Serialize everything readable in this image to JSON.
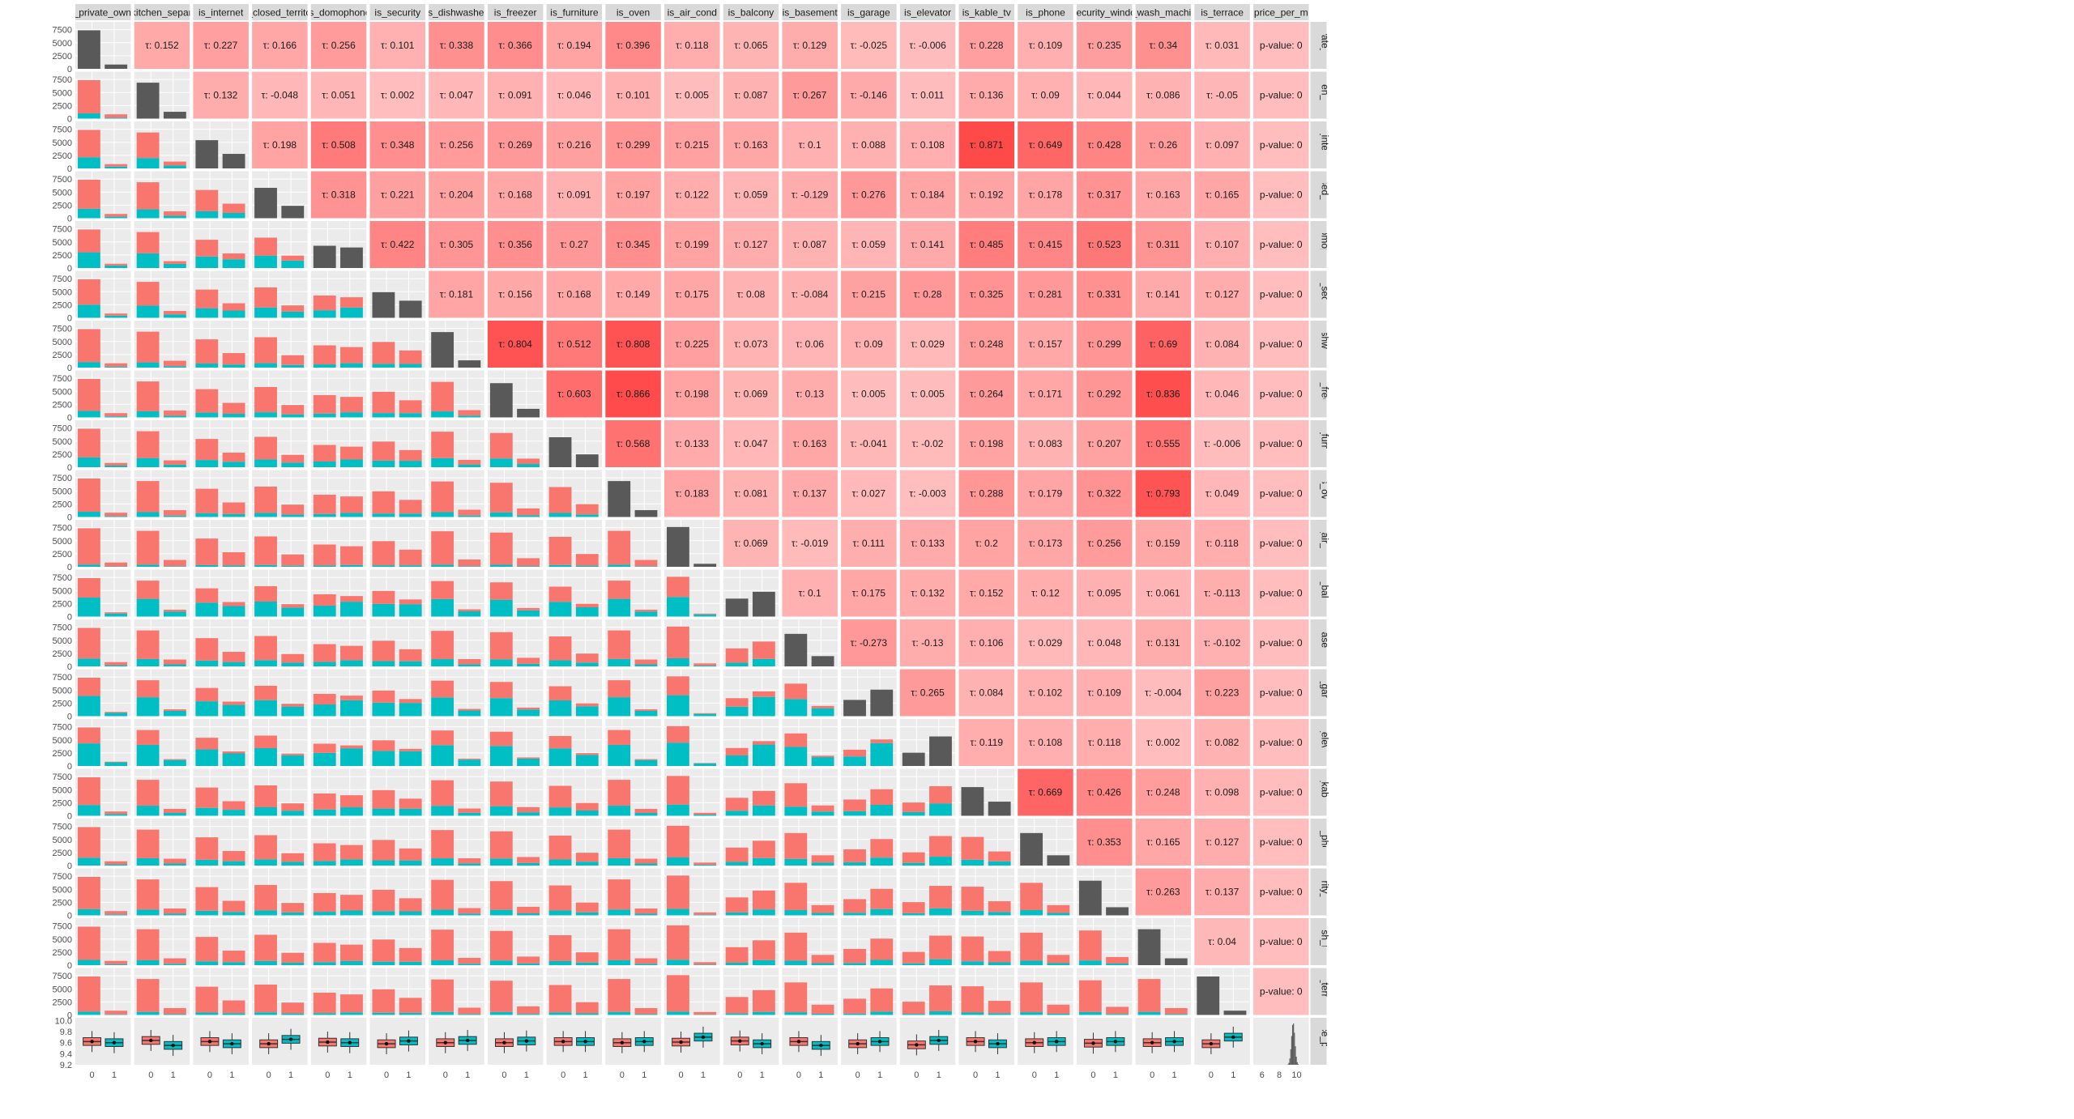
{
  "chart_data": {
    "type": "pairs-matrix",
    "variables": [
      "is_private_owner",
      "is_kitchen_separate",
      "is_internet",
      "is_closed_territory",
      "is_domophone",
      "is_security",
      "is_dishwasher",
      "is_freezer",
      "is_furniture",
      "is_oven",
      "is_air_cond",
      "is_balcony",
      "is_basement",
      "is_garage",
      "is_elevator",
      "is_kable_tv",
      "is_phone",
      "is_security_windows",
      "is_wash_machine",
      "is_terrace",
      "price_per_m"
    ],
    "column_labels": [
      "is_private_owner",
      "is_kitchen_separate",
      "is_internet",
      "is_closed_territory",
      "is_domophone",
      "is_security",
      "is_dishwasher",
      "is_freezer",
      "is_furniture",
      "is_oven",
      "is_air_cond",
      "is_balcony",
      "is_basement",
      "is_garage",
      "is_elevator",
      "is_kable_tv",
      "is_phone",
      "s_security_windows",
      "is_wash_machine",
      "is_terrace",
      "price_per_m"
    ],
    "row_labels": [
      "rivate_ow",
      "chen_sep",
      "is_internet",
      "losed_terri",
      "domopho",
      "is_securit",
      "dishwash",
      "is_freeze",
      "s_furnitur",
      "is_oven",
      "s_air_con",
      "is_balcon",
      "_basemer",
      "is_garage",
      "s_elevato",
      "s_kable_t",
      "is_phone",
      "curity_win",
      "vash_mac",
      "is_terrace",
      "rice_per_"
    ],
    "tau_upper": [
      [
        0.152,
        0.227,
        0.166,
        0.256,
        0.101,
        0.338,
        0.366,
        0.194,
        0.396,
        0.118,
        0.065,
        0.129,
        -0.025,
        -0.006,
        0.228,
        0.109,
        0.235,
        0.34,
        0.031
      ],
      [
        0.132,
        -0.048,
        0.051,
        0.002,
        0.047,
        0.091,
        0.046,
        0.101,
        0.005,
        0.087,
        0.267,
        -0.146,
        0.011,
        0.136,
        0.09,
        0.044,
        0.086,
        -0.05
      ],
      [
        0.198,
        0.508,
        0.348,
        0.256,
        0.269,
        0.216,
        0.299,
        0.215,
        0.163,
        0.1,
        0.088,
        0.108,
        0.871,
        0.649,
        0.428,
        0.26,
        0.097
      ],
      [
        0.318,
        0.221,
        0.204,
        0.168,
        0.091,
        0.197,
        0.122,
        0.059,
        -0.129,
        0.276,
        0.184,
        0.192,
        0.178,
        0.317,
        0.163,
        0.165
      ],
      [
        0.422,
        0.305,
        0.356,
        0.27,
        0.345,
        0.199,
        0.127,
        0.087,
        0.059,
        0.141,
        0.485,
        0.415,
        0.523,
        0.311,
        0.107
      ],
      [
        0.181,
        0.156,
        0.168,
        0.149,
        0.175,
        0.08,
        -0.084,
        0.215,
        0.28,
        0.325,
        0.281,
        0.331,
        0.141,
        0.127
      ],
      [
        0.804,
        0.512,
        0.808,
        0.225,
        0.073,
        0.06,
        0.09,
        0.029,
        0.248,
        0.157,
        0.299,
        0.69,
        0.084
      ],
      [
        0.603,
        0.866,
        0.198,
        0.069,
        0.13,
        0.005,
        0.005,
        0.264,
        0.171,
        0.292,
        0.836,
        0.046
      ],
      [
        0.568,
        0.133,
        0.047,
        0.163,
        -0.041,
        -0.02,
        0.198,
        0.083,
        0.207,
        0.555,
        -0.006
      ],
      [
        0.183,
        0.081,
        0.137,
        0.027,
        -0.003,
        0.288,
        0.179,
        0.322,
        0.793,
        0.049
      ],
      [
        0.069,
        -0.019,
        0.111,
        0.133,
        0.2,
        0.173,
        0.256,
        0.159,
        0.118
      ],
      [
        0.1,
        0.175,
        0.132,
        0.152,
        0.12,
        0.095,
        0.061,
        -0.113
      ],
      [
        -0.273,
        -0.13,
        0.106,
        0.029,
        0.048,
        0.131,
        -0.102
      ],
      [
        0.265,
        0.084,
        0.102,
        0.109,
        -0.004,
        0.223
      ],
      [
        0.119,
        0.108,
        0.118,
        0.002,
        0.082
      ],
      [
        0.669,
        0.426,
        0.248,
        0.098
      ],
      [
        0.353,
        0.165,
        0.127
      ],
      [
        0.263,
        0.137
      ],
      [
        0.04
      ],
      []
    ],
    "tau_prefix": "τ: ",
    "pvalue_text": "p-value: 0",
    "diag_zero_fraction": [
      0.9,
      0.84,
      0.66,
      0.71,
      0.52,
      0.6,
      0.83,
      0.8,
      0.7,
      0.84,
      0.93,
      0.42,
      0.76,
      0.38,
      0.31,
      0.67,
      0.76,
      0.81,
      0.84,
      0.9
    ],
    "ones_fraction": [
      0.1,
      0.16,
      0.34,
      0.29,
      0.48,
      0.4,
      0.17,
      0.2,
      0.3,
      0.16,
      0.07,
      0.58,
      0.24,
      0.62,
      0.69,
      0.33,
      0.24,
      0.19,
      0.16,
      0.1
    ],
    "price_box_medians": [
      [
        9.62,
        9.6
      ],
      [
        9.64,
        9.55
      ],
      [
        9.62,
        9.58
      ],
      [
        9.58,
        9.66
      ],
      [
        9.61,
        9.6
      ],
      [
        9.58,
        9.63
      ],
      [
        9.6,
        9.64
      ],
      [
        9.6,
        9.63
      ],
      [
        9.62,
        9.62
      ],
      [
        9.6,
        9.62
      ],
      [
        9.61,
        9.7
      ],
      [
        9.63,
        9.58
      ],
      [
        9.62,
        9.55
      ],
      [
        9.58,
        9.62
      ],
      [
        9.56,
        9.64
      ],
      [
        9.62,
        9.58
      ],
      [
        9.6,
        9.62
      ],
      [
        9.59,
        9.62
      ],
      [
        9.6,
        9.62
      ],
      [
        9.58,
        9.7
      ]
    ],
    "price_density_peak": 9.6,
    "y_axis_count_ticks": [
      "0",
      "2500",
      "5000",
      "7500"
    ],
    "y_axis_price_ticks": [
      "9.2",
      "9.4",
      "9.6",
      "9.8",
      "10.0"
    ],
    "x_axis_binary_ticks": [
      "0",
      "1"
    ],
    "x_axis_price_ticks": [
      "6",
      "8",
      "10"
    ],
    "count_max": 9000,
    "price_ylim": [
      9.2,
      10.05
    ],
    "price_xlim": [
      5,
      11.4
    ],
    "colors": {
      "fill_0": "#F8766D",
      "fill_1": "#00BFC4",
      "diag_bar": "#595959",
      "panel_bg": "#EBEBEB",
      "strip_bg": "#D9D9D9",
      "tau_low": "#FFBDBD",
      "tau_high": "#FF4A4A"
    }
  }
}
